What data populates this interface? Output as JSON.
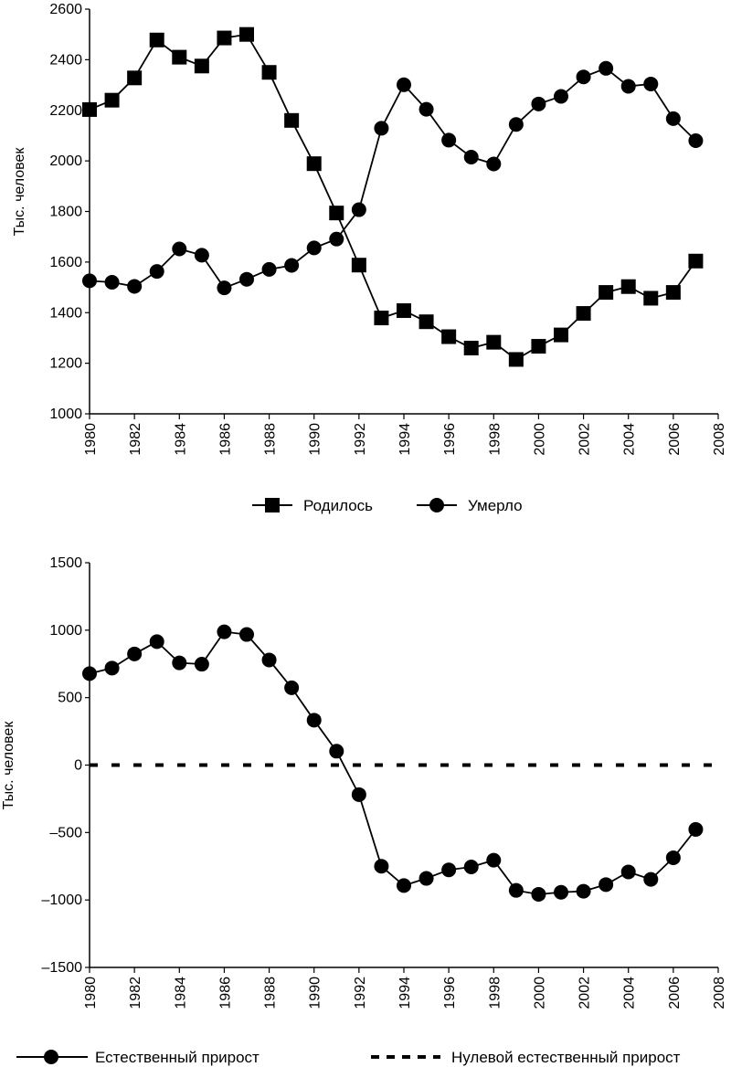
{
  "chart_data": [
    {
      "type": "line",
      "ylabel": "Тыс. человек",
      "xlabel": "",
      "ylim": [
        1000,
        2600
      ],
      "yticks": [
        1000,
        1200,
        1400,
        1600,
        1800,
        2000,
        2200,
        2400,
        2600
      ],
      "xlim": [
        1980,
        2008
      ],
      "xticks": [
        1980,
        1982,
        1984,
        1986,
        1988,
        1990,
        1992,
        1994,
        1996,
        1998,
        2000,
        2002,
        2004,
        2006,
        2008
      ],
      "grid": false,
      "legend": "bottom",
      "x": [
        1980,
        1981,
        1982,
        1983,
        1984,
        1985,
        1986,
        1987,
        1988,
        1989,
        1990,
        1991,
        1992,
        1993,
        1994,
        1995,
        1996,
        1997,
        1998,
        1999,
        2000,
        2001,
        2002,
        2003,
        2004,
        2005,
        2006,
        2007
      ],
      "series": [
        {
          "name": "Родилось",
          "marker": "square",
          "values": [
            2203,
            2240,
            2328,
            2478,
            2410,
            2375,
            2486,
            2500,
            2350,
            2160,
            1989,
            1794,
            1588,
            1379,
            1408,
            1364,
            1305,
            1260,
            1283,
            1215,
            1267,
            1312,
            1397,
            1480,
            1503,
            1457,
            1480,
            1604
          ]
        },
        {
          "name": "Умерло",
          "marker": "circle",
          "values": [
            1526,
            1520,
            1504,
            1563,
            1652,
            1627,
            1498,
            1532,
            1571,
            1587,
            1656,
            1691,
            1807,
            2129,
            2301,
            2204,
            2082,
            2015,
            1988,
            2144,
            2225,
            2255,
            2332,
            2366,
            2295,
            2304,
            2167,
            2080
          ]
        }
      ]
    },
    {
      "type": "line",
      "ylabel": "Тыс. человек",
      "xlabel": "",
      "ylim": [
        -1500,
        1500
      ],
      "yticks": [
        -1500,
        -1000,
        -500,
        0,
        500,
        1000,
        1500
      ],
      "ytick_labels": [
        "–1500",
        "–1000",
        "–500",
        "0",
        "500",
        "1000",
        "1500"
      ],
      "xlim": [
        1980,
        2008
      ],
      "xticks": [
        1980,
        1982,
        1984,
        1986,
        1988,
        1990,
        1992,
        1994,
        1996,
        1998,
        2000,
        2002,
        2004,
        2006,
        2008
      ],
      "grid": false,
      "legend": "bottom",
      "x": [
        1980,
        1981,
        1982,
        1983,
        1984,
        1985,
        1986,
        1987,
        1988,
        1989,
        1990,
        1991,
        1992,
        1993,
        1994,
        1995,
        1996,
        1997,
        1998,
        1999,
        2000,
        2001,
        2002,
        2003,
        2004,
        2005,
        2006,
        2007
      ],
      "series": [
        {
          "name": "Естественный прирост",
          "marker": "circle",
          "values": [
            678,
            719,
            824,
            915,
            758,
            748,
            988,
            968,
            779,
            573,
            333,
            103,
            -219,
            -750,
            -893,
            -840,
            -777,
            -755,
            -705,
            -929,
            -958,
            -943,
            -935,
            -886,
            -792,
            -847,
            -687,
            -477
          ]
        },
        {
          "name": "Нулевой естественный прирост",
          "style": "dashed",
          "x": [
            1980,
            2008
          ],
          "values": [
            0,
            0
          ]
        }
      ]
    }
  ]
}
